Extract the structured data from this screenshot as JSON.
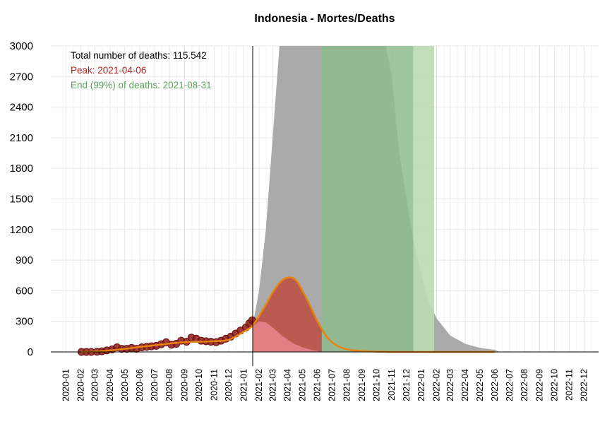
{
  "chart_data": {
    "type": "area",
    "title": "Indonesia - Mortes/Deaths",
    "xlabel": "",
    "ylabel": "",
    "xlim": [
      "2019-12-01",
      "2022-12-31"
    ],
    "ylim": [
      0,
      3000
    ],
    "yticks": [
      0,
      300,
      600,
      900,
      1200,
      1500,
      1800,
      2100,
      2400,
      2700,
      3000
    ],
    "xticks": [
      "2020-01",
      "2020-02",
      "2020-03",
      "2020-04",
      "2020-05",
      "2020-06",
      "2020-07",
      "2020-08",
      "2020-09",
      "2020-10",
      "2020-11",
      "2020-12",
      "2021-01",
      "2021-02",
      "2021-03",
      "2021-04",
      "2021-05",
      "2021-06",
      "2021-07",
      "2021-08",
      "2021-09",
      "2021-10",
      "2021-11",
      "2021-12",
      "2022-01",
      "2022-02",
      "2022-03",
      "2022-04",
      "2022-05",
      "2022-06",
      "2022-07",
      "2022-08",
      "2022-09",
      "2022-10",
      "2022-11",
      "2022-12"
    ],
    "grid": true,
    "annotations": {
      "total": "Total number of deaths: 115.542",
      "peak": "Peak: 2021-04-06",
      "end": "End (99%) of deaths: 2021-08-31"
    },
    "vline_date": "2021-01-19",
    "peak_date": "2021-04-06",
    "end_date": "2021-08-31",
    "green_band": [
      "2021-06-10",
      "2022-01-27"
    ],
    "green_band_light_start": "2021-12-15",
    "observed_points": [
      {
        "x": "2020-02-02",
        "y": 0
      },
      {
        "x": "2020-02-12",
        "y": 0
      },
      {
        "x": "2020-02-22",
        "y": 0
      },
      {
        "x": "2020-03-05",
        "y": 2
      },
      {
        "x": "2020-03-15",
        "y": 6
      },
      {
        "x": "2020-03-25",
        "y": 15
      },
      {
        "x": "2020-04-05",
        "y": 25
      },
      {
        "x": "2020-04-15",
        "y": 45
      },
      {
        "x": "2020-04-25",
        "y": 30
      },
      {
        "x": "2020-05-05",
        "y": 30
      },
      {
        "x": "2020-05-15",
        "y": 40
      },
      {
        "x": "2020-05-25",
        "y": 30
      },
      {
        "x": "2020-06-05",
        "y": 45
      },
      {
        "x": "2020-06-15",
        "y": 50
      },
      {
        "x": "2020-06-25",
        "y": 55
      },
      {
        "x": "2020-07-05",
        "y": 60
      },
      {
        "x": "2020-07-15",
        "y": 75
      },
      {
        "x": "2020-07-25",
        "y": 95
      },
      {
        "x": "2020-08-05",
        "y": 70
      },
      {
        "x": "2020-08-15",
        "y": 80
      },
      {
        "x": "2020-08-25",
        "y": 110
      },
      {
        "x": "2020-09-05",
        "y": 100
      },
      {
        "x": "2020-09-15",
        "y": 140
      },
      {
        "x": "2020-09-25",
        "y": 130
      },
      {
        "x": "2020-10-05",
        "y": 110
      },
      {
        "x": "2020-10-15",
        "y": 105
      },
      {
        "x": "2020-10-25",
        "y": 100
      },
      {
        "x": "2020-11-05",
        "y": 95
      },
      {
        "x": "2020-11-15",
        "y": 110
      },
      {
        "x": "2020-11-25",
        "y": 130
      },
      {
        "x": "2020-12-05",
        "y": 150
      },
      {
        "x": "2020-12-15",
        "y": 180
      },
      {
        "x": "2020-12-25",
        "y": 210
      },
      {
        "x": "2021-01-05",
        "y": 240
      },
      {
        "x": "2021-01-12",
        "y": 280
      },
      {
        "x": "2021-01-18",
        "y": 310
      }
    ],
    "series": [
      {
        "name": "",
        "kind": "fitted-curve",
        "color": "#E8820C",
        "points": [
          {
            "x": "2020-02-01",
            "y": 0
          },
          {
            "x": "2020-03-15",
            "y": 8
          },
          {
            "x": "2020-05-01",
            "y": 30
          },
          {
            "x": "2020-07-01",
            "y": 65
          },
          {
            "x": "2020-09-01",
            "y": 95
          },
          {
            "x": "2020-11-01",
            "y": 105
          },
          {
            "x": "2020-12-01",
            "y": 120
          },
          {
            "x": "2021-01-01",
            "y": 200
          },
          {
            "x": "2021-01-19",
            "y": 260
          },
          {
            "x": "2021-02-10",
            "y": 420
          },
          {
            "x": "2021-03-01",
            "y": 580
          },
          {
            "x": "2021-03-20",
            "y": 700
          },
          {
            "x": "2021-04-06",
            "y": 730
          },
          {
            "x": "2021-04-20",
            "y": 690
          },
          {
            "x": "2021-05-10",
            "y": 520
          },
          {
            "x": "2021-06-01",
            "y": 300
          },
          {
            "x": "2021-06-20",
            "y": 150
          },
          {
            "x": "2021-07-10",
            "y": 65
          },
          {
            "x": "2021-08-01",
            "y": 25
          },
          {
            "x": "2021-09-01",
            "y": 8
          },
          {
            "x": "2021-10-15",
            "y": 2
          },
          {
            "x": "2021-12-01",
            "y": 0
          },
          {
            "x": "2022-06-01",
            "y": 0
          }
        ]
      },
      {
        "name": "",
        "kind": "forecast-upper-band",
        "color": "#AAAAAA",
        "points": [
          {
            "x": "2021-01-19",
            "y": 260
          },
          {
            "x": "2021-02-01",
            "y": 600
          },
          {
            "x": "2021-02-15",
            "y": 1200
          },
          {
            "x": "2021-03-01",
            "y": 2100
          },
          {
            "x": "2021-03-15",
            "y": 3000
          },
          {
            "x": "2021-10-20",
            "y": 3000
          },
          {
            "x": "2021-11-01",
            "y": 2700
          },
          {
            "x": "2021-11-15",
            "y": 2000
          },
          {
            "x": "2021-12-01",
            "y": 1500
          },
          {
            "x": "2021-12-15",
            "y": 1100
          },
          {
            "x": "2022-01-01",
            "y": 750
          },
          {
            "x": "2022-01-15",
            "y": 500
          },
          {
            "x": "2022-02-01",
            "y": 330
          },
          {
            "x": "2022-03-01",
            "y": 160
          },
          {
            "x": "2022-04-01",
            "y": 80
          },
          {
            "x": "2022-05-01",
            "y": 40
          },
          {
            "x": "2022-06-01",
            "y": 20
          },
          {
            "x": "2022-06-10",
            "y": 0
          }
        ]
      },
      {
        "name": "",
        "kind": "forecast-mean",
        "color": "#C0392B",
        "points": [
          {
            "x": "2021-01-19",
            "y": 260
          },
          {
            "x": "2021-02-10",
            "y": 420
          },
          {
            "x": "2021-03-01",
            "y": 580
          },
          {
            "x": "2021-03-20",
            "y": 700
          },
          {
            "x": "2021-04-06",
            "y": 730
          },
          {
            "x": "2021-04-20",
            "y": 690
          },
          {
            "x": "2021-05-10",
            "y": 520
          },
          {
            "x": "2021-06-01",
            "y": 300
          },
          {
            "x": "2021-06-10",
            "y": 230
          },
          {
            "x": "2021-06-10",
            "y": 0
          }
        ]
      },
      {
        "name": "",
        "kind": "forecast-lower-band",
        "color": "#E8868E",
        "points": [
          {
            "x": "2021-01-19",
            "y": 250
          },
          {
            "x": "2021-02-01",
            "y": 300
          },
          {
            "x": "2021-02-15",
            "y": 290
          },
          {
            "x": "2021-03-01",
            "y": 240
          },
          {
            "x": "2021-03-20",
            "y": 160
          },
          {
            "x": "2021-04-10",
            "y": 90
          },
          {
            "x": "2021-05-01",
            "y": 45
          },
          {
            "x": "2021-05-20",
            "y": 20
          },
          {
            "x": "2021-06-05",
            "y": 5
          },
          {
            "x": "2021-06-10",
            "y": 0
          }
        ]
      }
    ]
  },
  "colors": {
    "grid": "#E6E6E6",
    "axis": "#000000",
    "gray_area": "#AAAAAA",
    "green_band": "#8FBC8F",
    "green_band_light": "#BBDBB5",
    "red_area": "#C0392B",
    "pink_area": "#E8868E",
    "orange_line": "#E8820C",
    "points": "#8B1A1A",
    "annot_total": "#000000",
    "annot_peak": "#B22222",
    "annot_end": "#5FA05F"
  }
}
